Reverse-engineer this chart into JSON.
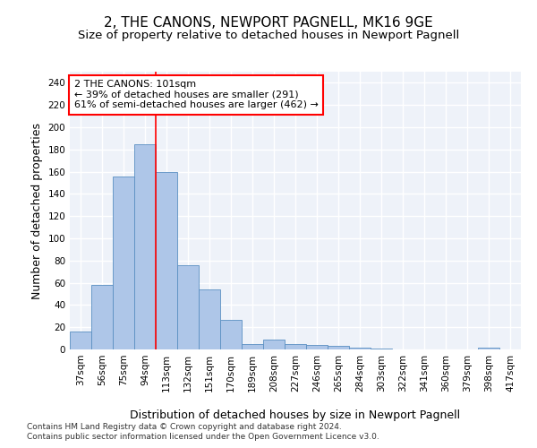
{
  "title": "2, THE CANONS, NEWPORT PAGNELL, MK16 9GE",
  "subtitle": "Size of property relative to detached houses in Newport Pagnell",
  "xlabel": "Distribution of detached houses by size in Newport Pagnell",
  "ylabel": "Number of detached properties",
  "categories": [
    "37sqm",
    "56sqm",
    "75sqm",
    "94sqm",
    "113sqm",
    "132sqm",
    "151sqm",
    "170sqm",
    "189sqm",
    "208sqm",
    "227sqm",
    "246sqm",
    "265sqm",
    "284sqm",
    "303sqm",
    "322sqm",
    "341sqm",
    "360sqm",
    "379sqm",
    "398sqm",
    "417sqm"
  ],
  "values": [
    16,
    58,
    156,
    185,
    160,
    76,
    54,
    27,
    5,
    9,
    5,
    4,
    3,
    2,
    1,
    0,
    0,
    0,
    0,
    2,
    0
  ],
  "bar_color": "#aec6e8",
  "bar_edge_color": "#5a8fc2",
  "vline_x": 3.5,
  "vline_color": "red",
  "annotation_text": "2 THE CANONS: 101sqm\n← 39% of detached houses are smaller (291)\n61% of semi-detached houses are larger (462) →",
  "annotation_box_color": "white",
  "annotation_box_edge_color": "red",
  "ylim": [
    0,
    250
  ],
  "yticks": [
    0,
    20,
    40,
    60,
    80,
    100,
    120,
    140,
    160,
    180,
    200,
    220,
    240
  ],
  "background_color": "#eef2f9",
  "grid_color": "white",
  "footer1": "Contains HM Land Registry data © Crown copyright and database right 2024.",
  "footer2": "Contains public sector information licensed under the Open Government Licence v3.0.",
  "title_fontsize": 11,
  "subtitle_fontsize": 9.5,
  "xlabel_fontsize": 9,
  "ylabel_fontsize": 9,
  "tick_fontsize": 7.5,
  "footer_fontsize": 6.5
}
